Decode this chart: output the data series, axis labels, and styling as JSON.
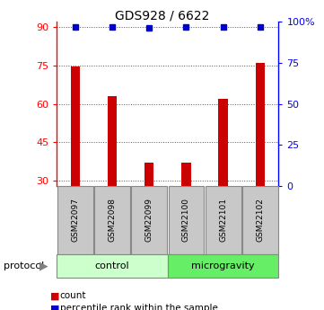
{
  "title": "GDS928 / 6622",
  "samples": [
    "GSM22097",
    "GSM22098",
    "GSM22099",
    "GSM22100",
    "GSM22101",
    "GSM22102"
  ],
  "bar_values": [
    74.5,
    63.0,
    37.0,
    37.0,
    62.0,
    76.0
  ],
  "dot_values": [
    97,
    97,
    96,
    97,
    97,
    97
  ],
  "bar_color": "#cc0000",
  "dot_color": "#0000cc",
  "ylim_left": [
    28,
    92
  ],
  "yticks_left": [
    30,
    45,
    60,
    75,
    90
  ],
  "ylim_right": [
    0,
    100
  ],
  "yticks_right": [
    0,
    25,
    50,
    75,
    100
  ],
  "ytick_right_labels": [
    "0",
    "25",
    "50",
    "75",
    "100%"
  ],
  "control_label": "control",
  "microgravity_label": "microgravity",
  "protocol_label": "protocol",
  "legend_count": "count",
  "legend_percentile": "percentile rank within the sample",
  "control_color": "#ccffcc",
  "microgravity_color": "#66ee66",
  "sample_box_color": "#c8c8c8",
  "bar_width": 0.25,
  "grid_color": "#555555",
  "n_control": 3,
  "n_microgravity": 3
}
